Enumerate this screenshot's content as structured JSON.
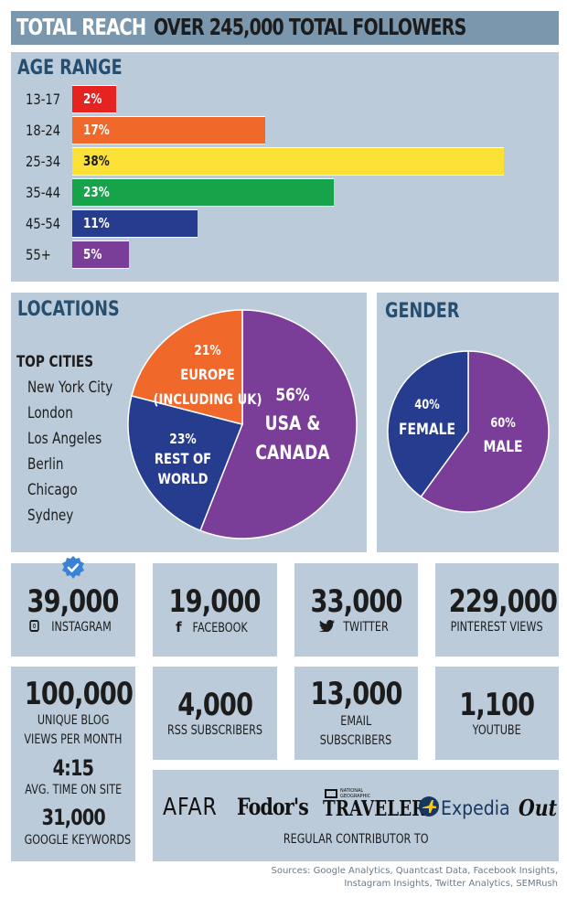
{
  "header": {
    "title": "TOTAL REACH",
    "subtitle": "OVER 245,000 TOTAL FOLLOWERS"
  },
  "age": {
    "title": "AGE RANGE"
  },
  "locations": {
    "title": "LOCATIONS",
    "top_cities_label": "TOP CITIES",
    "cities": [
      "New York City",
      "London",
      "Los Angeles",
      "Berlin",
      "Chicago",
      "Sydney"
    ]
  },
  "gender": {
    "title": "GENDER"
  },
  "chart_data": [
    {
      "type": "bar",
      "orientation": "horizontal",
      "title": "AGE RANGE",
      "categories": [
        "13-17",
        "18-24",
        "25-34",
        "35-44",
        "45-54",
        "55+"
      ],
      "values": [
        2,
        17,
        38,
        23,
        11,
        5
      ],
      "value_labels": [
        "2%",
        "17%",
        "38%",
        "23%",
        "11%",
        "5%"
      ],
      "colors": [
        "#e52421",
        "#f0682a",
        "#fbe035",
        "#16a34a",
        "#263c8f",
        "#7a3e98"
      ]
    },
    {
      "type": "pie",
      "title": "LOCATIONS",
      "slices": [
        {
          "pct": "56%",
          "label": [
            "USA &",
            "CANADA"
          ],
          "value": 56,
          "color": "#7a3e98"
        },
        {
          "pct": "23%",
          "label": [
            "REST OF",
            "WORLD"
          ],
          "value": 23,
          "color": "#263c8f"
        },
        {
          "pct": "21%",
          "label": [
            "EUROPE",
            "(INCLUDING UK)"
          ],
          "value": 21,
          "color": "#f0682a"
        }
      ]
    },
    {
      "type": "pie",
      "title": "GENDER",
      "slices": [
        {
          "pct": "60%",
          "label": [
            "MALE"
          ],
          "value": 60,
          "color": "#7a3e98"
        },
        {
          "pct": "40%",
          "label": [
            "FEMALE"
          ],
          "value": 40,
          "color": "#263c8f"
        }
      ]
    }
  ],
  "stats": {
    "instagram": {
      "value": "39,000",
      "label": "INSTAGRAM"
    },
    "facebook": {
      "value": "19,000",
      "label": "FACEBOOK"
    },
    "twitter": {
      "value": "33,000",
      "label": "TWITTER"
    },
    "pinterest": {
      "value": "229,000",
      "label": "PINTEREST VIEWS"
    },
    "blog": {
      "views_value": "100,000",
      "views_label_1": "UNIQUE BLOG",
      "views_label_2": "VIEWS PER MONTH",
      "time_value": "4:15",
      "time_label": "AVG. TIME ON SITE",
      "keywords_value": "31,000",
      "keywords_label": "GOOGLE KEYWORDS"
    },
    "rss": {
      "value": "4,000",
      "label": "RSS SUBSCRIBERS"
    },
    "email": {
      "value": "13,000",
      "label_1": "EMAIL",
      "label_2": "SUBSCRIBERS"
    },
    "youtube": {
      "value": "1,100",
      "label": "YOUTUBE"
    }
  },
  "contributor": {
    "logos": [
      "AFAR",
      "Fodor's",
      "TRAVELER",
      "Expedia",
      "Out"
    ],
    "natgeo_small": "NATIONAL GEOGRAPHIC",
    "label": "REGULAR CONTRIBUTOR TO"
  },
  "sources": {
    "line1": "Sources: Google Analytics, Quantcast Data,  Facebook Insights,",
    "line2": "Instagram Insights, Twitter Analytics, SEMRush"
  },
  "colors": {
    "panel": "#bccbd9",
    "header": "#7a97ad",
    "title": "#264e70"
  }
}
